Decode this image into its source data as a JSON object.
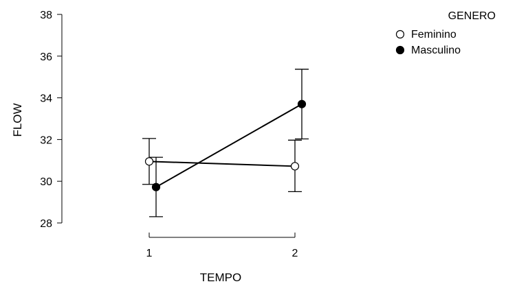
{
  "chart_data": {
    "type": "line",
    "xlabel": "TEMPO",
    "ylabel": "FLOW",
    "x": [
      1,
      2
    ],
    "x_tick_labels": [
      "1",
      "2"
    ],
    "ylim": [
      28,
      38
    ],
    "y_ticks": [
      28,
      30,
      32,
      34,
      36,
      38
    ],
    "grid": false,
    "legend": {
      "title": "GENERO",
      "placement": "top-right"
    },
    "series": [
      {
        "name": "Feminino",
        "marker": "open-circle",
        "color": "#000000",
        "values": [
          30.95,
          30.72
        ],
        "error_low": [
          29.85,
          29.5
        ],
        "error_high": [
          32.05,
          31.97
        ]
      },
      {
        "name": "Masculino",
        "marker": "filled-circle",
        "color": "#000000",
        "values": [
          29.72,
          33.7
        ],
        "error_low": [
          28.3,
          32.03
        ],
        "error_high": [
          31.15,
          35.37
        ]
      }
    ]
  }
}
